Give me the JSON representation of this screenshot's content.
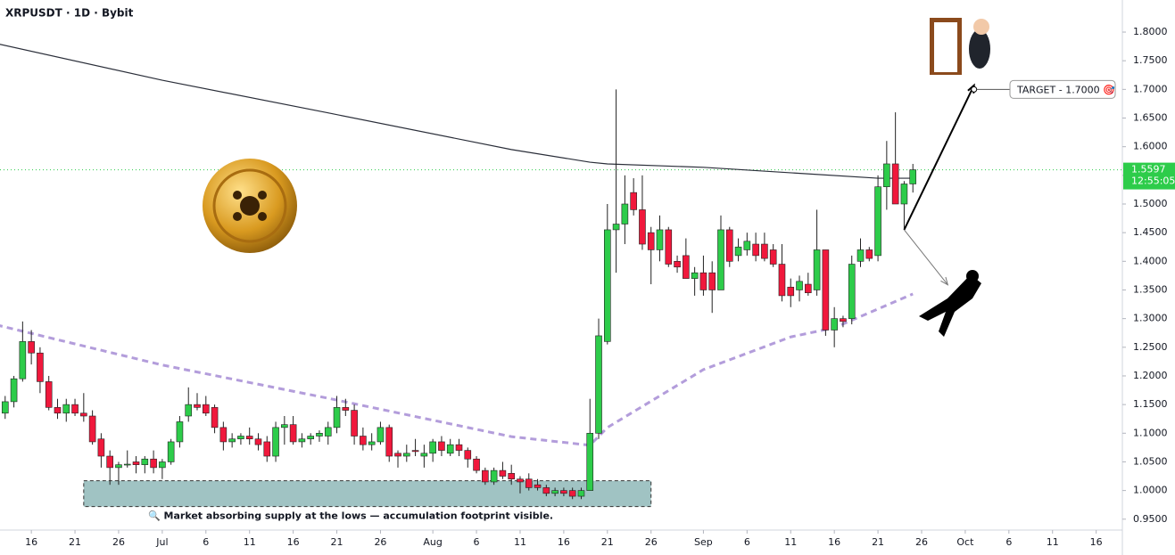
{
  "chart_data": {
    "type": "candlestick",
    "title": "XRPUSDT · 1D · Bybit",
    "up_color": "#2dcc4a",
    "down_color": "#f0183c",
    "categories": [
      "Jun 13",
      "Jun 14",
      "Jun 15",
      "Jun 16",
      "Jun 17",
      "Jun 18",
      "Jun 19",
      "Jun 20",
      "Jun 21",
      "Jun 22",
      "Jun 23",
      "Jun 24",
      "Jun 25",
      "Jun 26",
      "Jun 27",
      "Jun 28",
      "Jun 29",
      "Jun 30",
      "Jul 1",
      "Jul 2",
      "Jul 3",
      "Jul 4",
      "Jul 5",
      "Jul 6",
      "Jul 7",
      "Jul 8",
      "Jul 9",
      "Jul 10",
      "Jul 11",
      "Jul 12",
      "Jul 13",
      "Jul 14",
      "Jul 15",
      "Jul 16",
      "Jul 17",
      "Jul 18",
      "Jul 19",
      "Jul 20",
      "Jul 21",
      "Jul 22",
      "Jul 23",
      "Jul 24",
      "Jul 25",
      "Jul 26",
      "Jul 27",
      "Jul 28",
      "Jul 29",
      "Jul 30",
      "Jul 31",
      "Aug 1",
      "Aug 2",
      "Aug 3",
      "Aug 4",
      "Aug 5",
      "Aug 6",
      "Aug 7",
      "Aug 8",
      "Aug 9",
      "Aug 10",
      "Aug 11",
      "Aug 12",
      "Aug 13",
      "Aug 14",
      "Aug 15",
      "Aug 16",
      "Aug 17",
      "Aug 18",
      "Aug 19",
      "Aug 20",
      "Aug 21",
      "Aug 22",
      "Aug 23",
      "Aug 24",
      "Aug 25",
      "Aug 26",
      "Aug 27",
      "Aug 28",
      "Aug 29",
      "Aug 30",
      "Aug 31",
      "Sep 1",
      "Sep 2",
      "Sep 3",
      "Sep 4",
      "Sep 5",
      "Sep 6",
      "Sep 7",
      "Sep 8",
      "Sep 9",
      "Sep 10",
      "Sep 11",
      "Sep 12",
      "Sep 13",
      "Sep 14",
      "Sep 15",
      "Sep 16",
      "Sep 17",
      "Sep 18",
      "Sep 19",
      "Sep 20",
      "Sep 21",
      "Sep 22",
      "Sep 23",
      "Sep 24",
      "Sep 25"
    ],
    "open": [
      1.135,
      1.155,
      1.195,
      1.26,
      1.24,
      1.19,
      1.145,
      1.135,
      1.15,
      1.135,
      1.13,
      1.09,
      1.06,
      1.04,
      1.045,
      1.05,
      1.045,
      1.055,
      1.04,
      1.05,
      1.085,
      1.13,
      1.15,
      1.15,
      1.145,
      1.11,
      1.085,
      1.09,
      1.095,
      1.09,
      1.085,
      1.06,
      1.11,
      1.115,
      1.085,
      1.09,
      1.095,
      1.095,
      1.11,
      1.145,
      1.14,
      1.095,
      1.08,
      1.085,
      1.11,
      1.065,
      1.06,
      1.07,
      1.06,
      1.065,
      1.085,
      1.065,
      1.08,
      1.07,
      1.055,
      1.035,
      1.015,
      1.035,
      1.03,
      1.02,
      1.02,
      1.01,
      1.005,
      0.995,
      1.0,
      1.0,
      0.99,
      1.0,
      1.1,
      1.26,
      1.455,
      1.465,
      1.52,
      1.49,
      1.45,
      1.42,
      1.455,
      1.4,
      1.41,
      1.37,
      1.38,
      1.38,
      1.35,
      1.455,
      1.41,
      1.42,
      1.43,
      1.43,
      1.42,
      1.395,
      1.355,
      1.35,
      1.36,
      1.35,
      1.42,
      1.28,
      1.3,
      1.3,
      1.4,
      1.42,
      1.41,
      1.53,
      1.57,
      1.5,
      1.535
    ],
    "high": [
      1.165,
      1.2,
      1.295,
      1.28,
      1.25,
      1.2,
      1.16,
      1.16,
      1.16,
      1.17,
      1.14,
      1.1,
      1.07,
      1.05,
      1.07,
      1.06,
      1.06,
      1.07,
      1.055,
      1.09,
      1.13,
      1.18,
      1.17,
      1.165,
      1.15,
      1.12,
      1.1,
      1.1,
      1.11,
      1.1,
      1.095,
      1.12,
      1.13,
      1.13,
      1.1,
      1.1,
      1.105,
      1.12,
      1.165,
      1.16,
      1.15,
      1.11,
      1.1,
      1.12,
      1.115,
      1.07,
      1.08,
      1.09,
      1.08,
      1.09,
      1.095,
      1.09,
      1.09,
      1.075,
      1.06,
      1.04,
      1.04,
      1.05,
      1.045,
      1.025,
      1.03,
      1.02,
      1.01,
      1.005,
      1.005,
      1.005,
      1.005,
      1.16,
      1.3,
      1.5,
      1.7,
      1.55,
      1.545,
      1.55,
      1.46,
      1.48,
      1.46,
      1.41,
      1.44,
      1.39,
      1.41,
      1.4,
      1.48,
      1.46,
      1.44,
      1.45,
      1.45,
      1.45,
      1.43,
      1.43,
      1.37,
      1.375,
      1.38,
      1.49,
      1.42,
      1.32,
      1.305,
      1.41,
      1.44,
      1.425,
      1.55,
      1.61,
      1.66,
      1.54,
      1.57
    ],
    "low": [
      1.125,
      1.145,
      1.19,
      1.22,
      1.17,
      1.14,
      1.125,
      1.12,
      1.13,
      1.12,
      1.08,
      1.04,
      1.01,
      1.01,
      1.04,
      1.03,
      1.03,
      1.03,
      1.02,
      1.045,
      1.075,
      1.12,
      1.14,
      1.13,
      1.1,
      1.07,
      1.075,
      1.08,
      1.08,
      1.07,
      1.05,
      1.05,
      1.08,
      1.08,
      1.075,
      1.08,
      1.085,
      1.08,
      1.1,
      1.13,
      1.08,
      1.07,
      1.07,
      1.08,
      1.05,
      1.04,
      1.05,
      1.06,
      1.04,
      1.05,
      1.06,
      1.06,
      1.06,
      1.04,
      1.03,
      1.01,
      1.01,
      1.02,
      1.01,
      0.995,
      1.0,
      1.0,
      0.99,
      0.99,
      0.99,
      0.985,
      0.985,
      1.0,
      1.09,
      1.255,
      1.38,
      1.43,
      1.48,
      1.42,
      1.36,
      1.4,
      1.39,
      1.38,
      1.37,
      1.34,
      1.34,
      1.31,
      1.35,
      1.39,
      1.4,
      1.41,
      1.4,
      1.4,
      1.39,
      1.33,
      1.32,
      1.33,
      1.34,
      1.34,
      1.27,
      1.25,
      1.285,
      1.29,
      1.39,
      1.4,
      1.4,
      1.49,
      1.5,
      1.455,
      1.52
    ],
    "close": [
      1.155,
      1.195,
      1.26,
      1.24,
      1.19,
      1.145,
      1.135,
      1.15,
      1.135,
      1.13,
      1.085,
      1.06,
      1.04,
      1.045,
      1.046,
      1.045,
      1.055,
      1.04,
      1.05,
      1.085,
      1.12,
      1.15,
      1.145,
      1.135,
      1.11,
      1.085,
      1.09,
      1.095,
      1.09,
      1.08,
      1.06,
      1.11,
      1.115,
      1.085,
      1.09,
      1.095,
      1.1,
      1.11,
      1.145,
      1.14,
      1.095,
      1.08,
      1.085,
      1.11,
      1.06,
      1.06,
      1.065,
      1.068,
      1.065,
      1.085,
      1.07,
      1.08,
      1.07,
      1.055,
      1.035,
      1.015,
      1.035,
      1.025,
      1.02,
      1.015,
      1.005,
      1.005,
      0.995,
      1.0,
      0.995,
      0.99,
      1.0,
      1.1,
      1.27,
      1.455,
      1.465,
      1.5,
      1.49,
      1.43,
      1.42,
      1.455,
      1.395,
      1.39,
      1.37,
      1.38,
      1.35,
      1.35,
      1.455,
      1.4,
      1.425,
      1.435,
      1.41,
      1.405,
      1.395,
      1.34,
      1.34,
      1.365,
      1.345,
      1.42,
      1.28,
      1.3,
      1.295,
      1.395,
      1.42,
      1.405,
      1.53,
      1.57,
      1.5,
      1.535,
      1.5597
    ],
    "lines": [
      {
        "color": "#2a2e39",
        "dashed": false,
        "x": [
          "Jun 12",
          "Jul 1",
          "Jul 20",
          "Aug 10",
          "Aug 19",
          "Aug 21",
          "Sep 1",
          "Sep 21",
          "Sep 25"
        ],
        "values": [
          1.78,
          1.716,
          1.659,
          1.595,
          1.573,
          1.57,
          1.564,
          1.545,
          1.545
        ]
      },
      {
        "color": "#b39ddb",
        "dashed": true,
        "x": [
          "Jun 12",
          "Jul 1",
          "Jul 20",
          "Aug 10",
          "Aug 19",
          "Aug 21",
          "Sep 1",
          "Sep 11",
          "Sep 16",
          "Sep 25"
        ],
        "values": [
          1.289,
          1.219,
          1.161,
          1.094,
          1.079,
          1.11,
          1.211,
          1.268,
          1.284,
          1.343
        ]
      }
    ],
    "zone": {
      "x": [
        "Jun 22",
        "Aug 26"
      ],
      "y": [
        0.972,
        1.017
      ],
      "color": "#8fb8b8",
      "label": "🔍 Market absorbing supply at the lows — accumulation footprint visible."
    },
    "arrows": [
      {
        "x": [
          "Sep 24",
          "Oct 2"
        ],
        "y": [
          1.455,
          1.707
        ],
        "color": "#000000"
      },
      {
        "x": [
          "Sep 24",
          "Sep 29"
        ],
        "y": [
          1.455,
          1.359
        ],
        "color": "#777777"
      }
    ],
    "target": {
      "x": "Oct 2",
      "value": 1.7,
      "label": "TARGET - 1.7000 🎯"
    },
    "last_price": 1.5597,
    "countdown": "12:55:05",
    "xlim": [
      "Jun 12",
      "Oct 19"
    ],
    "ylim": [
      0.931,
      1.856
    ],
    "yticks": [
      {
        "value": 0.95,
        "label": "0.9500"
      },
      {
        "value": 1.0,
        "label": "1.0000"
      },
      {
        "value": 1.05,
        "label": "1.0500"
      },
      {
        "value": 1.1,
        "label": "1.1000"
      },
      {
        "value": 1.15,
        "label": "1.1500"
      },
      {
        "value": 1.2,
        "label": "1.2000"
      },
      {
        "value": 1.25,
        "label": "1.2500"
      },
      {
        "value": 1.3,
        "label": "1.3000"
      },
      {
        "value": 1.35,
        "label": "1.3500"
      },
      {
        "value": 1.4,
        "label": "1.4000"
      },
      {
        "value": 1.45,
        "label": "1.4500"
      },
      {
        "value": 1.5,
        "label": "1.5000"
      },
      {
        "value": 1.55,
        "label": "1.5500"
      },
      {
        "value": 1.6,
        "label": "1.6000"
      },
      {
        "value": 1.65,
        "label": "1.6500"
      },
      {
        "value": 1.7,
        "label": "1.7000"
      },
      {
        "value": 1.75,
        "label": "1.7500"
      },
      {
        "value": 1.8,
        "label": "1.8000"
      }
    ],
    "xticks": [
      {
        "value": "Jun 16",
        "label": "16"
      },
      {
        "value": "Jun 21",
        "label": "21"
      },
      {
        "value": "Jun 26",
        "label": "26"
      },
      {
        "value": "Jul 1",
        "label": "Jul"
      },
      {
        "value": "Jul 6",
        "label": "6"
      },
      {
        "value": "Jul 11",
        "label": "11"
      },
      {
        "value": "Jul 16",
        "label": "16"
      },
      {
        "value": "Jul 21",
        "label": "21"
      },
      {
        "value": "Jul 26",
        "label": "26"
      },
      {
        "value": "Aug 1",
        "label": "Aug"
      },
      {
        "value": "Aug 6",
        "label": "6"
      },
      {
        "value": "Aug 11",
        "label": "11"
      },
      {
        "value": "Aug 16",
        "label": "16"
      },
      {
        "value": "Aug 21",
        "label": "21"
      },
      {
        "value": "Aug 26",
        "label": "26"
      },
      {
        "value": "Sep 1",
        "label": "Sep"
      },
      {
        "value": "Sep 6",
        "label": "6"
      },
      {
        "value": "Sep 11",
        "label": "11"
      },
      {
        "value": "Sep 16",
        "label": "16"
      },
      {
        "value": "Sep 21",
        "label": "21"
      },
      {
        "value": "Sep 26",
        "label": "26"
      },
      {
        "value": "Oct 1",
        "label": "Oct"
      },
      {
        "value": "Oct 6",
        "label": "6"
      },
      {
        "value": "Oct 11",
        "label": "11"
      },
      {
        "value": "Oct 16",
        "label": "16"
      }
    ]
  }
}
